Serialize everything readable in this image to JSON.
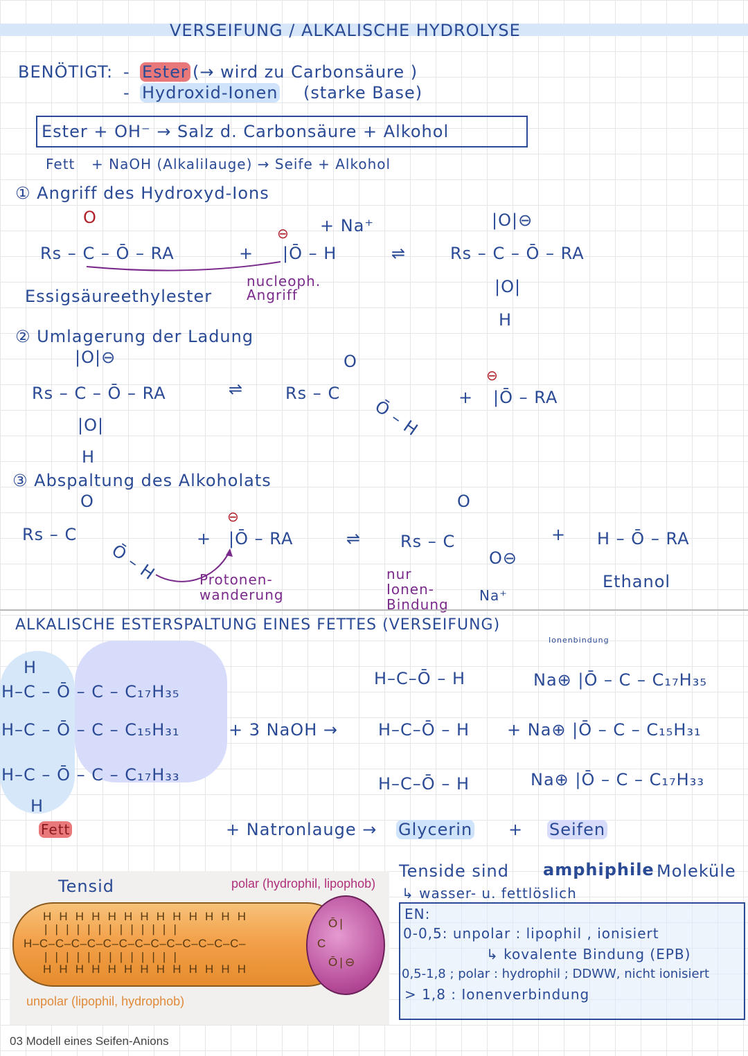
{
  "title": "VERSEIFUNG / ALKALISCHE HYDROLYSE",
  "needed": {
    "label": "BENÖTIGT:",
    "item1_dash": "-",
    "item1": "Ester",
    "item1_note": "(→ wird zu Carbonsäure )",
    "item2_dash": "-",
    "item2": "Hydroxid-Ionen",
    "item2_note": "(starke Base)"
  },
  "general": {
    "equation": "Ester + OH⁻  → Salz d. Carbonsäure   +  Alkohol",
    "example_fett": "Fett",
    "example_rest": "+ NaOH (Alkalilauge) →  Seife    + Alkohol"
  },
  "step1": {
    "heading": "① Angriff des Hydroxyd-Ions",
    "ester": "Rs – C – Ō – RA",
    "ester_o": "O",
    "plus": "+",
    "oh": "|Ō – H",
    "na": "+ Na⁺",
    "neg": "⊖",
    "arrow": "⇌",
    "product": "Rs – C – Ō – RA",
    "prod_top": "|O|⊖",
    "prod_bot": "|O|",
    "prod_h": "H",
    "ester_name": "Essigsäureethylester",
    "nucleo": "nucleoph. Angriff"
  },
  "step2": {
    "heading": "② Umlagerung der Ladung",
    "left": "Rs – C – Ō – RA",
    "left_top": "|O|⊖",
    "left_bot": "|O|",
    "left_h": "H",
    "arrow": "⇌",
    "mid": "Rs – C",
    "mid_top": "O",
    "mid_oh": "Ō – H",
    "plus": "+",
    "right": "|Ō – RA",
    "neg": "⊖"
  },
  "step3": {
    "heading": "③ Abspaltung des Alkoholats",
    "left": "Rs – C",
    "left_top": "O",
    "left_oh": "Ō – H",
    "plus": "+",
    "alkoholat": "|Ō – RA",
    "neg": "⊖",
    "protonen": "Protonen-wanderung",
    "arrow": "⇌",
    "right": "Rs – C",
    "right_top": "O",
    "right_o": "O⊖",
    "plus2": "+",
    "ethanol_f": "H – Ō – RA",
    "ion_note": "nur Ionen-Bindung",
    "na": "Na⁺",
    "ethanol": "Ethanol"
  },
  "fat": {
    "heading": "ALKALISCHE ESTERSPALTUNG EINES FETTES (VERSEIFUNG)",
    "rows": [
      "H–C – Ō – C – C₁₇H₃₅",
      "H–C – Ō – C – C₁₅H₃₁",
      "H–C – Ō – C – C₁₇H₃₃"
    ],
    "top_h": "H",
    "bottom_h": "H",
    "naoh": "+ 3 NaOH  →",
    "glycerin_rows": [
      "H–C–Ō – H",
      "H–C–Ō – H",
      "H–C–Ō – H"
    ],
    "soap_rows": [
      "Na⊕ |Ō – C – C₁₇H₃₅",
      "+ Na⊕ |Ō – C – C₁₅H₃₁",
      "Na⊕ |Ō – C – C₁₇H₃₃"
    ],
    "ion_label": "Ionenbindung",
    "fett": "Fett",
    "word_eq": "+ Natronlauge →",
    "glycerin": "Glycerin",
    "plus": "+",
    "seifen": "Seifen"
  },
  "figure": {
    "tensid": "Tensid",
    "polar": "polar (hydrophil, lipophob)",
    "unpolar": "unpolar (lipophil, hydrophob)",
    "caption": "03  Modell eines Seifen-Anions",
    "h_row": "H H H H H H H H H H H H H",
    "bond_row": "| | | | | | | | | | | | |",
    "chain": "H–C–C–C–C–C–C–C–C–C–C–C–C–C–",
    "head": "C",
    "head_o1": "Ō|",
    "head_o2": "Ō|⊖"
  },
  "tenside": {
    "line1": "Tenside sind",
    "amph": "amphiphile",
    "molekuele": "Moleküle",
    "line2": "↳ wasser- u. fettlöslich",
    "en": [
      "EN:",
      "0-0,5: unpolar : lipophil  , ionisiert",
      "↳ kovalente Bindung (EPB)",
      "0,5-1,8 ; polar : hydrophil ; DDWW, nicht ionisiert",
      "> 1,8  : Ionenverbindung"
    ]
  },
  "colors": {
    "ink_blue": "#2a4a95",
    "ink_red": "#b0202a",
    "ink_purple": "#7a2a8a",
    "highlight_blue": "#cfe3fa",
    "highlight_red": "#e9787a"
  }
}
